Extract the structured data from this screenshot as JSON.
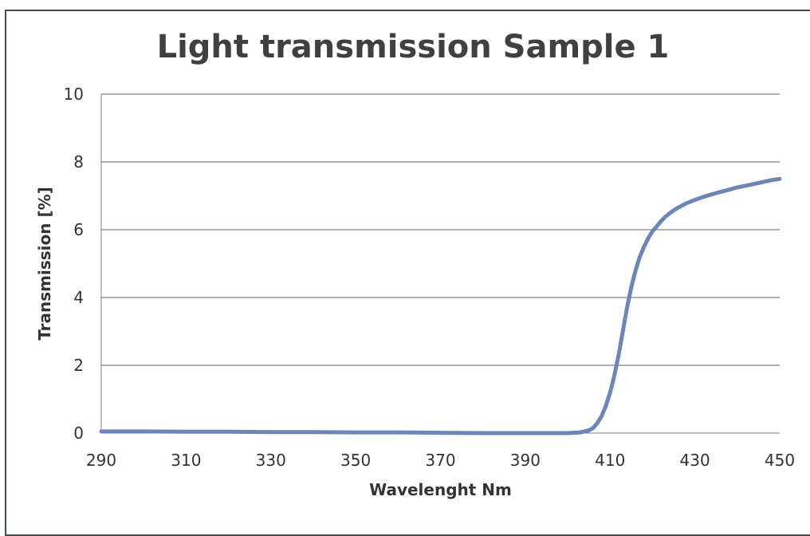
{
  "chart_data": {
    "type": "line",
    "title": "Light transmission Sample 1",
    "xlabel": "Wavelenght Nm",
    "ylabel": "Transmission [%]",
    "xlim": [
      290,
      450
    ],
    "ylim": [
      0,
      10
    ],
    "xticks": [
      "290",
      "310",
      "330",
      "350",
      "370",
      "390",
      "410",
      "430",
      "450"
    ],
    "yticks": [
      "0",
      "2",
      "4",
      "6",
      "8",
      "10"
    ],
    "grid": "horizontal",
    "line_color": "#6b86b8",
    "series": [
      {
        "x": [
          290,
          300,
          310,
          320,
          330,
          340,
          350,
          360,
          370,
          380,
          390,
          400,
          403,
          405,
          406,
          407,
          408,
          409,
          410,
          411,
          412,
          413,
          414,
          415,
          416,
          417,
          418,
          419,
          420,
          421,
          422,
          423,
          424,
          425,
          426,
          428,
          430,
          432,
          435,
          438,
          440,
          442,
          445,
          448,
          450
        ],
        "y": [
          0.05,
          0.05,
          0.04,
          0.04,
          0.03,
          0.03,
          0.02,
          0.02,
          0.01,
          0.0,
          0.0,
          0.0,
          0.02,
          0.08,
          0.15,
          0.3,
          0.5,
          0.8,
          1.2,
          1.7,
          2.3,
          3.0,
          3.7,
          4.3,
          4.8,
          5.2,
          5.5,
          5.75,
          5.95,
          6.1,
          6.25,
          6.38,
          6.48,
          6.57,
          6.65,
          6.78,
          6.88,
          6.97,
          7.08,
          7.18,
          7.25,
          7.3,
          7.38,
          7.46,
          7.5
        ]
      }
    ]
  }
}
